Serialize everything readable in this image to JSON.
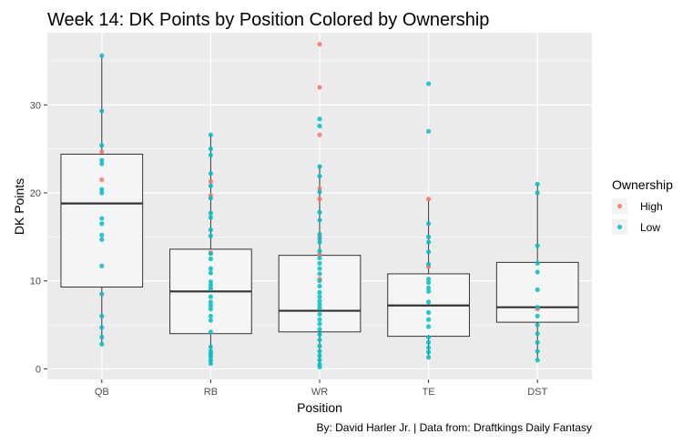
{
  "chart_data": {
    "type": "boxplot-with-points",
    "title": "Week 14: DK Points by Position Colored by Ownership",
    "xlabel": "Position",
    "ylabel": "DK Points",
    "caption": "By: David Harler Jr. | Data from: Draftkings Daily Fantasy",
    "ylim": [
      -1.2,
      38.2
    ],
    "yticks": [
      0,
      10,
      20,
      30
    ],
    "grid": true,
    "legend": {
      "title": "Ownership",
      "position": "right",
      "entries": [
        {
          "name": "High",
          "color": "#F8766D"
        },
        {
          "name": "Low",
          "color": "#00BFC4"
        }
      ]
    },
    "categories": [
      "QB",
      "RB",
      "WR",
      "TE",
      "DST"
    ],
    "boxes": [
      {
        "category": "QB",
        "q1": 9.3,
        "median": 18.8,
        "q3": 24.4,
        "whisker_low": 2.8,
        "whisker_high": 35.6
      },
      {
        "category": "RB",
        "q1": 4.0,
        "median": 8.8,
        "q3": 13.6,
        "whisker_low": 0.6,
        "whisker_high": 26.6
      },
      {
        "category": "WR",
        "q1": 4.2,
        "median": 6.6,
        "q3": 12.9,
        "whisker_low": 0.2,
        "whisker_high": 23.0
      },
      {
        "category": "TE",
        "q1": 3.7,
        "median": 7.2,
        "q3": 10.8,
        "whisker_low": 1.3,
        "whisker_high": 19.3
      },
      {
        "category": "DST",
        "q1": 5.3,
        "median": 7.0,
        "q3": 12.1,
        "whisker_low": 1.0,
        "whisker_high": 21.0
      }
    ],
    "series": [
      {
        "name": "High",
        "points": [
          {
            "x": "QB",
            "y": 24.7
          },
          {
            "x": "QB",
            "y": 21.5
          },
          {
            "x": "RB",
            "y": 21.3
          },
          {
            "x": "RB",
            "y": 19.7
          },
          {
            "x": "RB",
            "y": 13.2
          },
          {
            "x": "WR",
            "y": 36.9
          },
          {
            "x": "WR",
            "y": 32.0
          },
          {
            "x": "WR",
            "y": 26.6
          },
          {
            "x": "WR",
            "y": 20.5
          },
          {
            "x": "WR",
            "y": 19.3
          },
          {
            "x": "WR",
            "y": 15.0
          },
          {
            "x": "WR",
            "y": 13.0
          },
          {
            "x": "WR",
            "y": 10.2
          },
          {
            "x": "TE",
            "y": 19.3
          },
          {
            "x": "TE",
            "y": 11.6
          },
          {
            "x": "DST",
            "y": 6.8
          }
        ]
      },
      {
        "name": "Low",
        "points": [
          {
            "x": "QB",
            "y": 35.6
          },
          {
            "x": "QB",
            "y": 29.3
          },
          {
            "x": "QB",
            "y": 25.4
          },
          {
            "x": "QB",
            "y": 23.7
          },
          {
            "x": "QB",
            "y": 23.3
          },
          {
            "x": "QB",
            "y": 20.4
          },
          {
            "x": "QB",
            "y": 20.0
          },
          {
            "x": "QB",
            "y": 17.1
          },
          {
            "x": "QB",
            "y": 16.5
          },
          {
            "x": "QB",
            "y": 15.2
          },
          {
            "x": "QB",
            "y": 14.7
          },
          {
            "x": "QB",
            "y": 11.7
          },
          {
            "x": "QB",
            "y": 8.5
          },
          {
            "x": "QB",
            "y": 6.0
          },
          {
            "x": "QB",
            "y": 4.7
          },
          {
            "x": "QB",
            "y": 3.6
          },
          {
            "x": "QB",
            "y": 2.8
          },
          {
            "x": "RB",
            "y": 26.6
          },
          {
            "x": "RB",
            "y": 25.0
          },
          {
            "x": "RB",
            "y": 24.3
          },
          {
            "x": "RB",
            "y": 22.2
          },
          {
            "x": "RB",
            "y": 20.8
          },
          {
            "x": "RB",
            "y": 19.4
          },
          {
            "x": "RB",
            "y": 17.7
          },
          {
            "x": "RB",
            "y": 17.2
          },
          {
            "x": "RB",
            "y": 15.8
          },
          {
            "x": "RB",
            "y": 15.1
          },
          {
            "x": "RB",
            "y": 13.1
          },
          {
            "x": "RB",
            "y": 12.5
          },
          {
            "x": "RB",
            "y": 11.4
          },
          {
            "x": "RB",
            "y": 10.9
          },
          {
            "x": "RB",
            "y": 9.9
          },
          {
            "x": "RB",
            "y": 9.5
          },
          {
            "x": "RB",
            "y": 9.1
          },
          {
            "x": "RB",
            "y": 8.2
          },
          {
            "x": "RB",
            "y": 7.6
          },
          {
            "x": "RB",
            "y": 7.2
          },
          {
            "x": "RB",
            "y": 6.8
          },
          {
            "x": "RB",
            "y": 6.0
          },
          {
            "x": "RB",
            "y": 5.5
          },
          {
            "x": "RB",
            "y": 4.2
          },
          {
            "x": "RB",
            "y": 2.5
          },
          {
            "x": "RB",
            "y": 2.0
          },
          {
            "x": "RB",
            "y": 1.7
          },
          {
            "x": "RB",
            "y": 1.4
          },
          {
            "x": "RB",
            "y": 1.0
          },
          {
            "x": "RB",
            "y": 0.6
          },
          {
            "x": "WR",
            "y": 28.4
          },
          {
            "x": "WR",
            "y": 27.6
          },
          {
            "x": "WR",
            "y": 23.0
          },
          {
            "x": "WR",
            "y": 21.9
          },
          {
            "x": "WR",
            "y": 20.1
          },
          {
            "x": "WR",
            "y": 17.8
          },
          {
            "x": "WR",
            "y": 16.9
          },
          {
            "x": "WR",
            "y": 15.3
          },
          {
            "x": "WR",
            "y": 14.8
          },
          {
            "x": "WR",
            "y": 14.4
          },
          {
            "x": "WR",
            "y": 13.4
          },
          {
            "x": "WR",
            "y": 12.6
          },
          {
            "x": "WR",
            "y": 12.0
          },
          {
            "x": "WR",
            "y": 11.4
          },
          {
            "x": "WR",
            "y": 10.8
          },
          {
            "x": "WR",
            "y": 10.0
          },
          {
            "x": "WR",
            "y": 9.4
          },
          {
            "x": "WR",
            "y": 8.7
          },
          {
            "x": "WR",
            "y": 8.2
          },
          {
            "x": "WR",
            "y": 7.7
          },
          {
            "x": "WR",
            "y": 7.3
          },
          {
            "x": "WR",
            "y": 6.9
          },
          {
            "x": "WR",
            "y": 6.2
          },
          {
            "x": "WR",
            "y": 5.6
          },
          {
            "x": "WR",
            "y": 5.1
          },
          {
            "x": "WR",
            "y": 4.5
          },
          {
            "x": "WR",
            "y": 3.9
          },
          {
            "x": "WR",
            "y": 3.3
          },
          {
            "x": "WR",
            "y": 2.6
          },
          {
            "x": "WR",
            "y": 2.0
          },
          {
            "x": "WR",
            "y": 1.5
          },
          {
            "x": "WR",
            "y": 1.0
          },
          {
            "x": "WR",
            "y": 0.5
          },
          {
            "x": "WR",
            "y": 0.2
          },
          {
            "x": "TE",
            "y": 32.4
          },
          {
            "x": "TE",
            "y": 27.0
          },
          {
            "x": "TE",
            "y": 16.5
          },
          {
            "x": "TE",
            "y": 15.0
          },
          {
            "x": "TE",
            "y": 14.4
          },
          {
            "x": "TE",
            "y": 13.3
          },
          {
            "x": "TE",
            "y": 11.9
          },
          {
            "x": "TE",
            "y": 10.2
          },
          {
            "x": "TE",
            "y": 9.8
          },
          {
            "x": "TE",
            "y": 9.2
          },
          {
            "x": "TE",
            "y": 8.8
          },
          {
            "x": "TE",
            "y": 7.6
          },
          {
            "x": "TE",
            "y": 6.4
          },
          {
            "x": "TE",
            "y": 5.6
          },
          {
            "x": "TE",
            "y": 4.8
          },
          {
            "x": "TE",
            "y": 3.6
          },
          {
            "x": "TE",
            "y": 3.0
          },
          {
            "x": "TE",
            "y": 2.4
          },
          {
            "x": "TE",
            "y": 1.9
          },
          {
            "x": "TE",
            "y": 1.3
          },
          {
            "x": "DST",
            "y": 21.0
          },
          {
            "x": "DST",
            "y": 20.0
          },
          {
            "x": "DST",
            "y": 14.0
          },
          {
            "x": "DST",
            "y": 12.0
          },
          {
            "x": "DST",
            "y": 11.0
          },
          {
            "x": "DST",
            "y": 9.0
          },
          {
            "x": "DST",
            "y": 7.0
          },
          {
            "x": "DST",
            "y": 6.0
          },
          {
            "x": "DST",
            "y": 5.0
          },
          {
            "x": "DST",
            "y": 4.0
          },
          {
            "x": "DST",
            "y": 3.0
          },
          {
            "x": "DST",
            "y": 2.0
          },
          {
            "x": "DST",
            "y": 1.0
          }
        ]
      }
    ]
  }
}
